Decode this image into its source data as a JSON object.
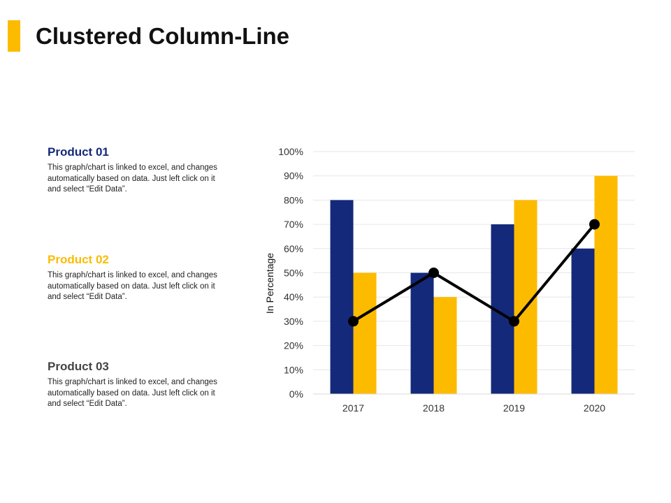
{
  "title": "Clustered Column-Line",
  "colors": {
    "accent": "#FDBB00",
    "series_1": "#14297A",
    "series_2": "#FDBB00",
    "line": "#000000",
    "product_03": "#444444"
  },
  "products": [
    {
      "title": "Product 01",
      "color": "#14297A",
      "desc": "This graph/chart is linked to excel, and changes automatically based on data. Just left click on it and select “Edit Data”."
    },
    {
      "title": "Product 02",
      "color": "#FDBB00",
      "desc": "This graph/chart is linked to excel, and changes automatically based on data. Just left click on it and select “Edit Data”."
    },
    {
      "title": "Product 03",
      "color": "#444444",
      "desc": "This graph/chart is linked to excel, and changes automatically based on data. Just left click on it and select “Edit Data”."
    }
  ],
  "chart_data": {
    "type": "bar",
    "categories": [
      "2017",
      "2018",
      "2019",
      "2020"
    ],
    "series": [
      {
        "type": "bar",
        "values": [
          80,
          50,
          70,
          60
        ],
        "color": "#14297A"
      },
      {
        "type": "bar",
        "values": [
          50,
          40,
          80,
          90
        ],
        "color": "#FDBB00"
      },
      {
        "type": "line",
        "values": [
          30,
          50,
          30,
          70
        ],
        "color": "#000000"
      }
    ],
    "ylabel": "In Percentage",
    "ylim": [
      0,
      100
    ],
    "yticks": [
      0,
      10,
      20,
      30,
      40,
      50,
      60,
      70,
      80,
      90,
      100
    ],
    "ytick_labels": [
      "0%",
      "10%",
      "20%",
      "30%",
      "40%",
      "50%",
      "60%",
      "70%",
      "80%",
      "90%",
      "100%"
    ],
    "grid": true,
    "legend": "none"
  }
}
